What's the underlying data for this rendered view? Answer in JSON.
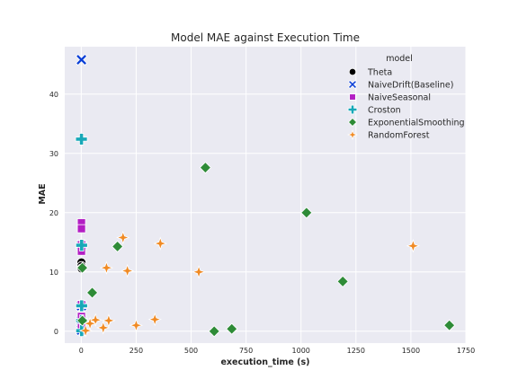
{
  "chart_data": {
    "type": "scatter",
    "title": "Model MAE against Execution Time",
    "xlabel": "execution_time (s)",
    "ylabel": "MAE",
    "xlim": [
      -75,
      1750
    ],
    "ylim": [
      -2,
      48
    ],
    "xticks": [
      0,
      250,
      500,
      750,
      1000,
      1250,
      1500,
      1750
    ],
    "yticks": [
      0,
      10,
      20,
      30,
      40
    ],
    "grid": true,
    "legend_title": "model",
    "legend_position": "top-right",
    "series": [
      {
        "name": "Theta",
        "marker": "circle",
        "color": "#000000",
        "points": [
          [
            1,
            11.6
          ],
          [
            1,
            11.0
          ],
          [
            2,
            10.6
          ],
          [
            1,
            2.0
          ],
          [
            2,
            1.6
          ],
          [
            1,
            0.3
          ]
        ]
      },
      {
        "name": "NaiveDrift(Baseline)",
        "marker": "x",
        "color": "#0a3fd6",
        "points": [
          [
            1,
            45.8
          ],
          [
            1,
            14.5
          ],
          [
            1,
            4.3
          ],
          [
            1,
            1.8
          ],
          [
            1,
            0.2
          ]
        ]
      },
      {
        "name": "NaiveSeasonal",
        "marker": "square",
        "color": "#b31fc4",
        "points": [
          [
            1,
            18.3
          ],
          [
            1,
            17.3
          ],
          [
            1,
            14.6
          ],
          [
            1,
            13.5
          ],
          [
            1,
            4.5
          ],
          [
            1,
            2.5
          ],
          [
            1,
            0.6
          ]
        ]
      },
      {
        "name": "Croston",
        "marker": "plus",
        "color": "#18a8b8",
        "points": [
          [
            1,
            32.4
          ],
          [
            2,
            14.5
          ],
          [
            2,
            4.3
          ],
          [
            2,
            1.8
          ],
          [
            2,
            0.1
          ]
        ]
      },
      {
        "name": "ExponentialSmoothing",
        "marker": "diamond",
        "color": "#2e8b37",
        "points": [
          [
            565,
            27.6
          ],
          [
            1025,
            20.0
          ],
          [
            165,
            14.3
          ],
          [
            5,
            10.7
          ],
          [
            1190,
            8.4
          ],
          [
            50,
            6.5
          ],
          [
            1675,
            1.0
          ],
          [
            605,
            0.0
          ],
          [
            685,
            0.4
          ],
          [
            5,
            1.8
          ]
        ]
      },
      {
        "name": "RandomForest",
        "marker": "star",
        "color": "#f08a24",
        "points": [
          [
            190,
            15.8
          ],
          [
            360,
            14.8
          ],
          [
            1510,
            14.4
          ],
          [
            115,
            10.7
          ],
          [
            210,
            10.2
          ],
          [
            535,
            10.0
          ],
          [
            335,
            2.0
          ],
          [
            250,
            1.0
          ],
          [
            125,
            1.8
          ],
          [
            65,
            1.9
          ],
          [
            40,
            1.3
          ],
          [
            100,
            0.6
          ],
          [
            20,
            0.1
          ]
        ]
      }
    ]
  }
}
